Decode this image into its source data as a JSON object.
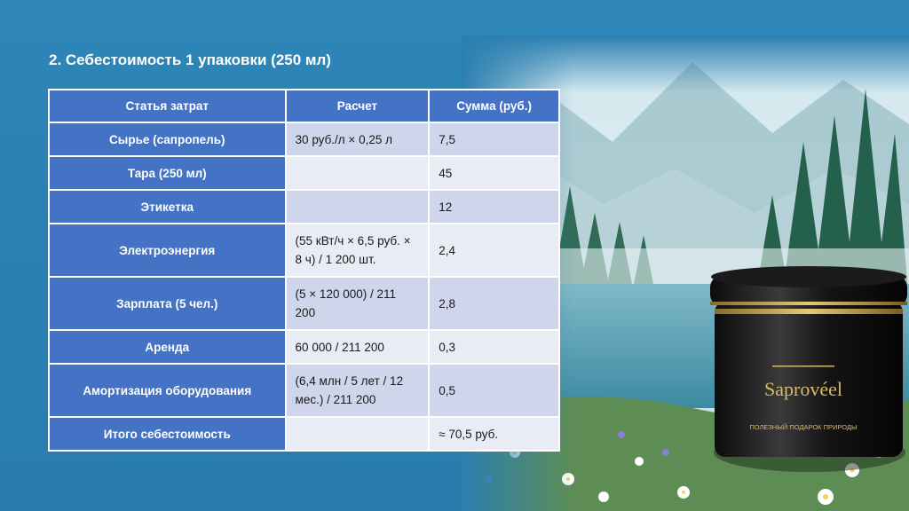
{
  "slide": {
    "title": "2. Себестоимость 1 упаковки (250 мл)"
  },
  "table": {
    "headers": [
      "Статья затрат",
      "Расчет",
      "Сумма (руб.)"
    ],
    "rows": [
      {
        "item": "Сырье (сапропель)",
        "calc": "30 руб./л × 0,25 л",
        "sum": "7,5"
      },
      {
        "item": "Тара (250 мл)",
        "calc": "",
        "sum": "45"
      },
      {
        "item": "Этикетка",
        "calc": "",
        "sum": "12"
      },
      {
        "item": "Электроэнергия",
        "calc": "(55 кВт/ч × 6,5 руб. × 8 ч) / 1 200 шт.",
        "sum": "2,4"
      },
      {
        "item": "Зарплата (5 чел.)",
        "calc": "(5 × 120 000) / 211 200",
        "sum": "2,8"
      },
      {
        "item": "Аренда",
        "calc": "60 000 / 211 200",
        "sum": "0,3"
      },
      {
        "item": "Амортизация оборудования",
        "calc": "(6,4 млн / 5 лет / 12 мес.) / 211 200",
        "sum": "0,5"
      }
    ],
    "total": {
      "item": "Итого себестоимость",
      "calc": "",
      "sum": "≈ 70,5 руб."
    }
  },
  "product": {
    "brand": "Saprovéel",
    "label_line": "ПОЛЕЗНЫЙ ПОДАРОК ПРИРОДЫ"
  },
  "colors": {
    "background": "#2b7fb0",
    "header_cell": "#4472c4",
    "row_odd": "#cfd5ea",
    "row_even": "#e9ebf5"
  }
}
